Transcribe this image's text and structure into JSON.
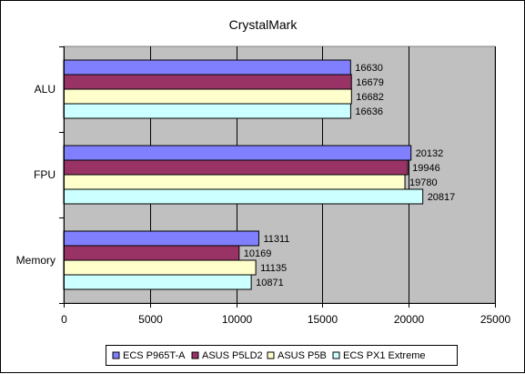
{
  "chart_data": {
    "type": "bar",
    "orientation": "horizontal",
    "title": "CrystalMark",
    "categories": [
      "ALU",
      "FPU",
      "Memory"
    ],
    "series": [
      {
        "name": "ECS P965T-A",
        "color": "#8080ff",
        "values": [
          16630,
          20132,
          11311
        ]
      },
      {
        "name": "ASUS P5LD2",
        "color": "#993366",
        "values": [
          16679,
          19946,
          10169
        ]
      },
      {
        "name": "ASUS P5B",
        "color": "#ffffcc",
        "values": [
          16682,
          19780,
          11135
        ]
      },
      {
        "name": "ECS PX1 Extreme",
        "color": "#ccffff",
        "values": [
          16636,
          20817,
          10871
        ]
      }
    ],
    "xlim": [
      0,
      25000
    ],
    "xticks": [
      0,
      5000,
      10000,
      15000,
      20000,
      25000
    ],
    "grid": true,
    "legend_position": "bottom",
    "plot_background": "#c0c0c0"
  }
}
